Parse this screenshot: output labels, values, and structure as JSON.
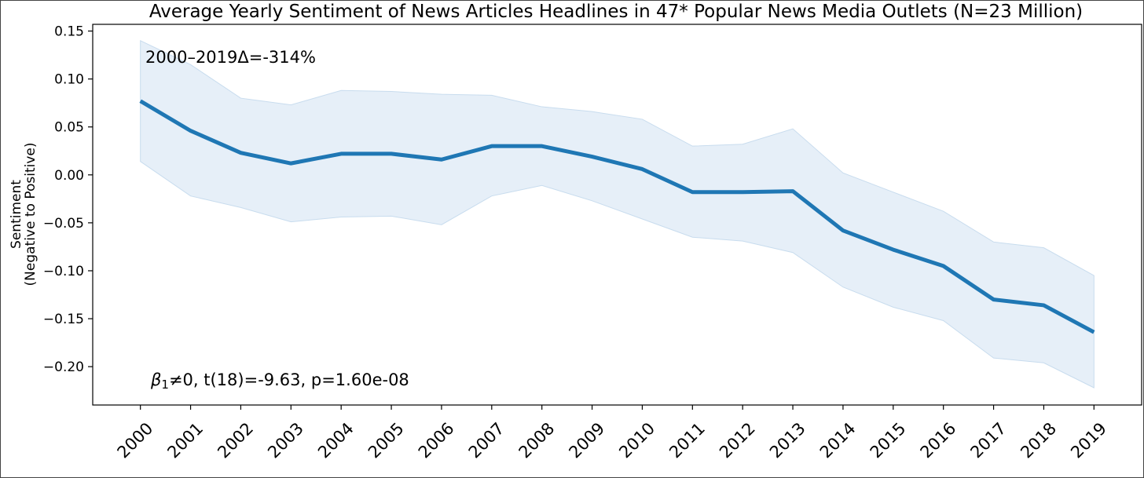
{
  "chart_data": {
    "type": "line",
    "title": "Average Yearly Sentiment of News Articles Headlines in 47* Popular News Media Outlets (N=23 Million)",
    "xlabel": "",
    "ylabel_line1": "Sentiment",
    "ylabel_line2": "(Negative to Positive)",
    "categories": [
      "2000",
      "2001",
      "2002",
      "2003",
      "2004",
      "2005",
      "2006",
      "2007",
      "2008",
      "2009",
      "2010",
      "2011",
      "2012",
      "2013",
      "2014",
      "2015",
      "2016",
      "2017",
      "2018",
      "2019"
    ],
    "series": [
      {
        "values": [
          0.077,
          0.046,
          0.023,
          0.012,
          0.022,
          0.022,
          0.016,
          0.03,
          0.03,
          0.019,
          0.006,
          -0.018,
          -0.018,
          -0.017,
          -0.058,
          -0.078,
          -0.095,
          -0.13,
          -0.136,
          -0.164
        ],
        "upper": [
          0.14,
          0.115,
          0.08,
          0.073,
          0.088,
          0.087,
          0.084,
          0.083,
          0.071,
          0.066,
          0.058,
          0.03,
          0.032,
          0.048,
          0.002,
          -0.018,
          -0.038,
          -0.07,
          -0.076,
          -0.105
        ],
        "lower": [
          0.014,
          -0.022,
          -0.034,
          -0.049,
          -0.044,
          -0.043,
          -0.052,
          -0.022,
          -0.011,
          -0.027,
          -0.046,
          -0.065,
          -0.069,
          -0.081,
          -0.117,
          -0.138,
          -0.152,
          -0.191,
          -0.196,
          -0.222
        ],
        "color": "#1f77b4",
        "band_color": "#e6eff8"
      }
    ],
    "yticks": [
      "0.15",
      "0.10",
      "0.05",
      "0.00",
      "−0.05",
      "−0.10",
      "−0.15",
      "−0.20"
    ],
    "ytick_values": [
      0.15,
      0.1,
      0.05,
      0.0,
      -0.05,
      -0.1,
      -0.15,
      -0.2
    ],
    "ylim": [
      -0.24,
      0.157
    ],
    "xlim": [
      -0.95,
      19.95
    ],
    "grid": false,
    "annotations": {
      "delta": "2000–2019Δ=-314%",
      "stat_beta": "β",
      "stat_sub": "1",
      "stat_rest": "≠0, t(18)=-9.63, p=1.60e-08"
    }
  }
}
